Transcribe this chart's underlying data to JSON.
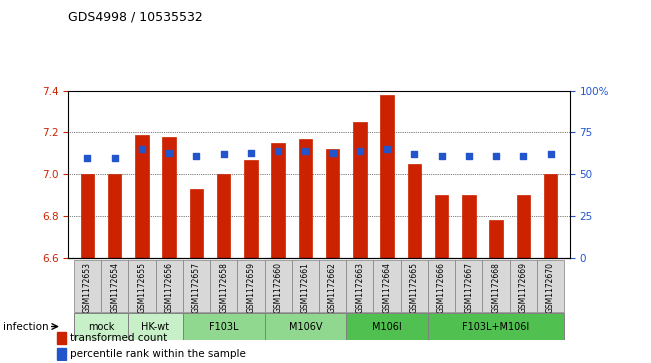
{
  "title": "GDS4998 / 10535532",
  "samples": [
    "GSM1172653",
    "GSM1172654",
    "GSM1172655",
    "GSM1172656",
    "GSM1172657",
    "GSM1172658",
    "GSM1172659",
    "GSM1172660",
    "GSM1172661",
    "GSM1172662",
    "GSM1172663",
    "GSM1172664",
    "GSM1172665",
    "GSM1172666",
    "GSM1172667",
    "GSM1172668",
    "GSM1172669",
    "GSM1172670"
  ],
  "bar_values": [
    7.0,
    7.0,
    7.19,
    7.18,
    6.93,
    7.0,
    7.07,
    7.15,
    7.17,
    7.12,
    7.25,
    7.38,
    7.05,
    6.9,
    6.9,
    6.78,
    6.9,
    7.0
  ],
  "percentile_values": [
    60,
    60,
    65,
    63,
    61,
    62,
    63,
    64,
    64,
    63,
    64,
    65,
    62,
    61,
    61,
    61,
    61,
    62
  ],
  "bar_color": "#cc2200",
  "dot_color": "#2255cc",
  "ylim_left": [
    6.6,
    7.4
  ],
  "ylim_right": [
    0,
    100
  ],
  "yticks_left": [
    6.6,
    6.8,
    7.0,
    7.2,
    7.4
  ],
  "yticks_right": [
    0,
    25,
    50,
    75,
    100
  ],
  "ytick_labels_right": [
    "0",
    "25",
    "50",
    "75",
    "100%"
  ],
  "infection_label": "infection",
  "legend_bar_label": "transformed count",
  "legend_dot_label": "percentile rank within the sample",
  "group_ranges": [
    [
      0,
      1,
      "mock",
      "#c8f0c8"
    ],
    [
      2,
      3,
      "HK-wt",
      "#c8f0c8"
    ],
    [
      4,
      6,
      "F103L",
      "#90d890"
    ],
    [
      7,
      9,
      "M106V",
      "#90d890"
    ],
    [
      10,
      12,
      "M106I",
      "#50c050"
    ],
    [
      13,
      17,
      "F103L+M106I",
      "#50c050"
    ]
  ]
}
